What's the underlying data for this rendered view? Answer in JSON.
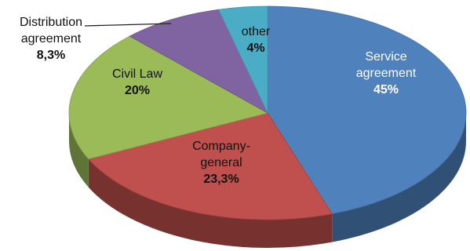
{
  "chart_data": {
    "type": "pie",
    "style": "3d",
    "title": "",
    "slices": [
      {
        "label": "Service\nagreement",
        "value": 45,
        "value_label": "45%",
        "color": "#4f81bd"
      },
      {
        "label": "Company-\ngeneral",
        "value": 23.3,
        "value_label": "23,3%",
        "color": "#c0504d"
      },
      {
        "label": "Civil Law",
        "value": 20,
        "value_label": "20%",
        "color": "#9bbb59"
      },
      {
        "label": "Distribution\nagreement",
        "value": 8.3,
        "value_label": "8,3%",
        "color": "#8064a2"
      },
      {
        "label": "other",
        "value": 4,
        "value_label": "4%",
        "color": "#4bacc6"
      }
    ],
    "start_angle_deg": 90,
    "direction": "clockwise"
  }
}
